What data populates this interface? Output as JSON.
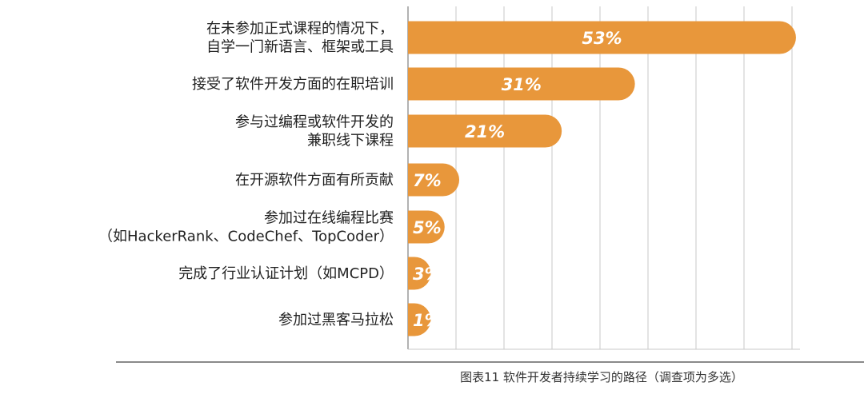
{
  "chart_data": {
    "type": "bar",
    "orientation": "horizontal",
    "categories": [
      [
        "在未参加正式课程的情况下，",
        "自学一门新语言、框架或工具"
      ],
      [
        "接受了软件开发方面的在职培训"
      ],
      [
        "参与过编程或软件开发的",
        "兼职线下课程"
      ],
      [
        "在开源软件方面有所贡献"
      ],
      [
        "参加过在线编程比赛",
        "（如HackerRank、CodeChef、TopCoder）"
      ],
      [
        "完成了行业认证计划（如MCPD）"
      ],
      [
        "参加过黑客马拉松"
      ]
    ],
    "values": [
      53,
      31,
      21,
      7,
      5,
      3,
      1
    ],
    "value_labels": [
      "53%",
      "31%",
      "21%",
      "7%",
      "5%",
      "3%",
      "1%"
    ],
    "caption": "图表11 软件开发者持续学习的路径（调查项为多选）",
    "xlim": [
      0,
      54
    ],
    "grid": true,
    "colors": {
      "bar": "#E8973B",
      "grid": "#c8c8c8",
      "axis": "#999999",
      "separator": "#8a8a8a"
    }
  }
}
